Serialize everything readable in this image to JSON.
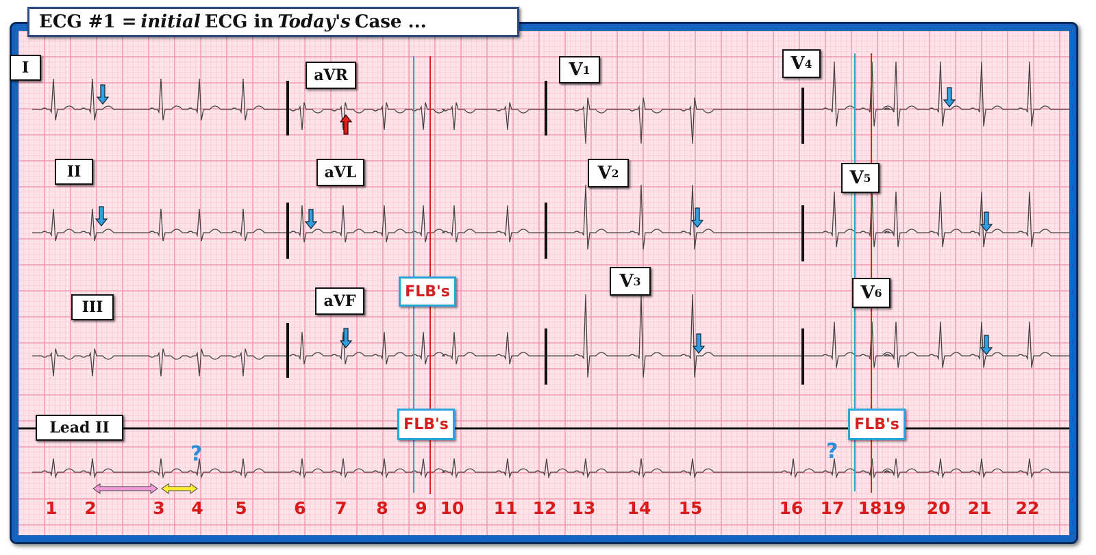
{
  "title": {
    "part1": "ECG #1 =",
    "italic1": "initial",
    "part2": "ECG in",
    "italic2": "Today's",
    "part3": "Case ..."
  },
  "leads": {
    "I": "I",
    "II": "II",
    "III": "III",
    "aVR": "aVR",
    "aVL": "aVL",
    "aVF": "aVF",
    "V1": "V",
    "V2": "V",
    "V3": "V",
    "V4": "V",
    "V5": "V",
    "V6": "V",
    "V1_sub": "1",
    "V2_sub": "2",
    "V3_sub": "3",
    "V4_sub": "4",
    "V5_sub": "5",
    "V6_sub": "6",
    "rhythm": "Lead II"
  },
  "flb_label": "FLB's",
  "question_mark": "?",
  "beats": [
    "1",
    "2",
    "3",
    "4",
    "5",
    "6",
    "7",
    "8",
    "9",
    "10",
    "11",
    "12",
    "13",
    "14",
    "15",
    "16",
    "17",
    "18",
    "19",
    "20",
    "21",
    "22"
  ],
  "colors": {
    "frame": "#1565c0",
    "paper": "#fde4ea",
    "grid_major": "#f28ca5",
    "grid_minor": "#f8c3cf",
    "trace": "#444444",
    "beat_numbers": "#d91b1b",
    "blue_marker": "#29a3d8",
    "red_marker": "#d62020",
    "arrow_blue": "#2f9fe0",
    "arrow_red": "#e0201d",
    "arrow_pink": "#f09ad6",
    "arrow_yellow": "#ffee33"
  }
}
